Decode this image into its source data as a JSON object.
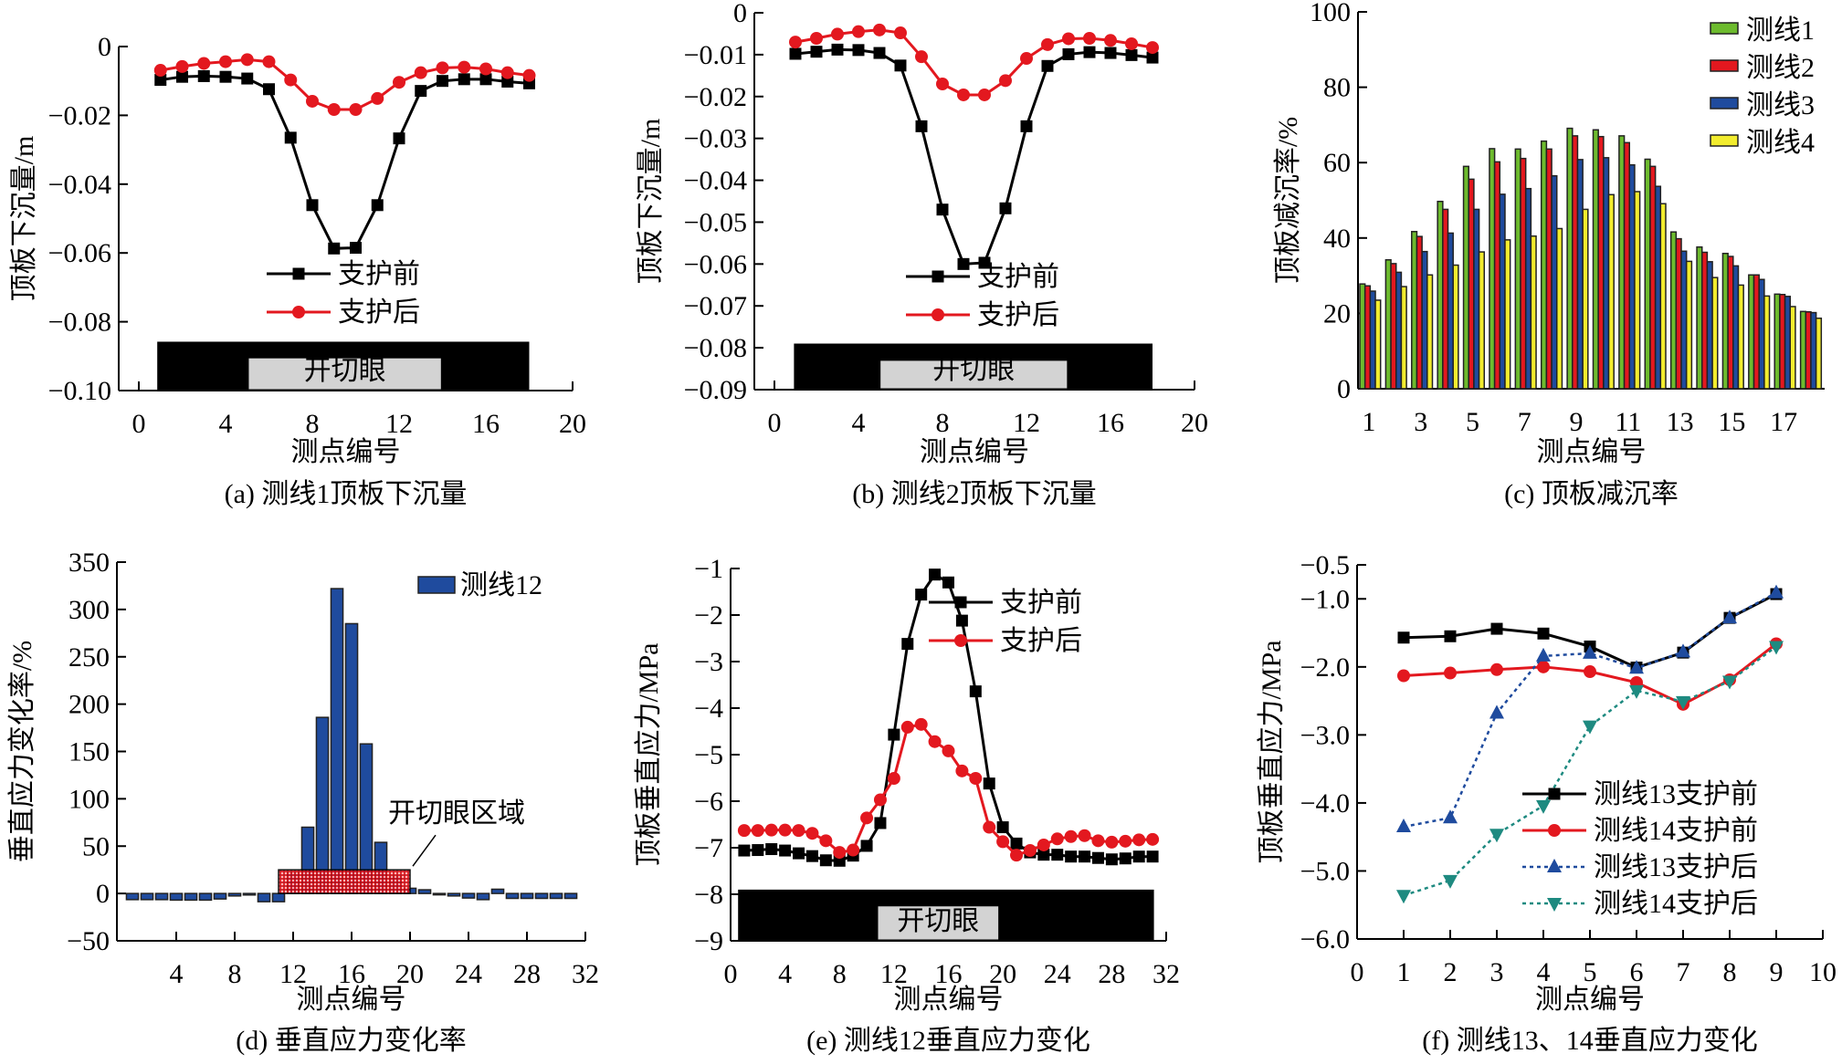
{
  "figure": {
    "panels": [
      "a",
      "b",
      "c",
      "d",
      "e",
      "f"
    ]
  },
  "chart_data": [
    {
      "id": "a",
      "type": "line",
      "caption": "(a)  测线1顶板下沉量",
      "xlabel": "测点编号",
      "ylabel": "顶板下沉量/m",
      "xlim": [
        0,
        20
      ],
      "ylim": [
        -0.1,
        0
      ],
      "xticks": [
        0,
        4,
        8,
        12,
        16,
        20
      ],
      "xtick_labels": [
        "0",
        "4",
        "8",
        "12",
        "16",
        "20"
      ],
      "yticks": [
        0,
        -0.02,
        -0.04,
        -0.06,
        -0.08,
        -0.1
      ],
      "ytick_labels": [
        "0",
        "−0.02",
        "−0.04",
        "−0.06",
        "−0.08",
        "−0.10"
      ],
      "grid": false,
      "legend_position": "center-right",
      "x": [
        1,
        2,
        3,
        4,
        5,
        6,
        7,
        8,
        9,
        10,
        11,
        12,
        13,
        14,
        15,
        16,
        17,
        18
      ],
      "series": [
        {
          "name": "支护前",
          "color": "#000000",
          "marker": "square",
          "dashed": false,
          "values": [
            -0.0097,
            -0.0088,
            -0.0086,
            -0.0088,
            -0.0093,
            -0.0124,
            -0.0265,
            -0.0461,
            -0.0587,
            -0.0585,
            -0.0461,
            -0.0267,
            -0.0129,
            -0.01,
            -0.0095,
            -0.0095,
            -0.0102,
            -0.0107
          ]
        },
        {
          "name": "支护后",
          "color": "#e3181f",
          "marker": "circle",
          "dashed": false,
          "values": [
            -0.0069,
            -0.0058,
            -0.0049,
            -0.0044,
            -0.0038,
            -0.0044,
            -0.0097,
            -0.0159,
            -0.0183,
            -0.0183,
            -0.0151,
            -0.0104,
            -0.0076,
            -0.0062,
            -0.006,
            -0.0065,
            -0.0076,
            -0.0084
          ]
        }
      ],
      "annotation_box": {
        "label": "开切眼",
        "outer_x": [
          0.85,
          18.0
        ],
        "outer_top": -0.0858,
        "inner_x": [
          5.05,
          13.95
        ],
        "inner_top": -0.0905
      }
    },
    {
      "id": "b",
      "type": "line",
      "caption": "(b)  测线2顶板下沉量",
      "xlabel": "测点编号",
      "ylabel": "顶板下沉量/m",
      "xlim": [
        0,
        20
      ],
      "ylim": [
        -0.09,
        0
      ],
      "xticks": [
        0,
        4,
        8,
        12,
        16,
        20
      ],
      "xtick_labels": [
        "0",
        "4",
        "8",
        "12",
        "16",
        "20"
      ],
      "yticks": [
        0,
        -0.01,
        -0.02,
        -0.03,
        -0.04,
        -0.05,
        -0.06,
        -0.07,
        -0.08,
        -0.09
      ],
      "ytick_labels": [
        "0",
        "−0.01",
        "−0.02",
        "−0.03",
        "−0.04",
        "−0.05",
        "−0.06",
        "−0.07",
        "−0.08",
        "−0.09"
      ],
      "grid": false,
      "legend_position": "center-right",
      "x": [
        1,
        2,
        3,
        4,
        5,
        6,
        7,
        8,
        9,
        10,
        11,
        12,
        13,
        14,
        15,
        16,
        17,
        18
      ],
      "series": [
        {
          "name": "支护前",
          "color": "#000000",
          "marker": "square",
          "dashed": false,
          "values": [
            -0.0098,
            -0.0093,
            -0.0088,
            -0.0089,
            -0.0096,
            -0.0126,
            -0.0271,
            -0.047,
            -0.06,
            -0.0597,
            -0.0467,
            -0.0271,
            -0.0127,
            -0.0099,
            -0.0094,
            -0.0096,
            -0.0101,
            -0.0107
          ]
        },
        {
          "name": "支护后",
          "color": "#e3181f",
          "marker": "circle",
          "dashed": false,
          "values": [
            -0.007,
            -0.0061,
            -0.0051,
            -0.0045,
            -0.0041,
            -0.0048,
            -0.0105,
            -0.017,
            -0.0196,
            -0.0196,
            -0.0162,
            -0.0109,
            -0.0076,
            -0.0062,
            -0.0061,
            -0.0066,
            -0.0074,
            -0.0083
          ]
        }
      ],
      "annotation_box": {
        "label": "开切眼",
        "outer_x": [
          0.93,
          18.0
        ],
        "outer_top": -0.079,
        "inner_x": [
          5.03,
          13.95
        ],
        "inner_top": -0.083
      }
    },
    {
      "id": "c",
      "type": "bar",
      "caption": "(c)  顶板减沉率",
      "xlabel": "测点编号",
      "ylabel": "顶板减沉率/%",
      "ylim": [
        0,
        100
      ],
      "yticks": [
        0,
        20,
        40,
        60,
        80,
        100
      ],
      "ytick_labels": [
        "0",
        "20",
        "40",
        "60",
        "80",
        "100"
      ],
      "categories": [
        "1",
        "2",
        "3",
        "4",
        "5",
        "6",
        "7",
        "8",
        "9",
        "10",
        "11",
        "12",
        "13",
        "14",
        "15",
        "16",
        "17",
        "18"
      ],
      "xtick_labels_shown": [
        "1",
        "3",
        "5",
        "7",
        "9",
        "11",
        "13",
        "15",
        "17"
      ],
      "grid": false,
      "legend_position": "top-right",
      "series": [
        {
          "name": "测线1",
          "color": "#6dbb2e",
          "values": [
            27.8,
            34.2,
            41.7,
            49.7,
            59.0,
            63.7,
            63.6,
            65.7,
            69.1,
            68.7,
            67.1,
            60.9,
            41.6,
            37.6,
            35.9,
            30.2,
            25.1,
            20.5
          ]
        },
        {
          "name": "测线2",
          "color": "#e3181f",
          "values": [
            27.3,
            33.2,
            40.4,
            47.6,
            55.6,
            60.2,
            61.1,
            63.6,
            67.1,
            66.9,
            65.3,
            59.0,
            39.8,
            36.2,
            35.1,
            30.2,
            25.0,
            20.4
          ]
        },
        {
          "name": "测线3",
          "color": "#1f4b9e",
          "values": [
            25.9,
            30.9,
            36.4,
            41.3,
            47.6,
            51.6,
            53.1,
            56.5,
            60.8,
            61.3,
            59.4,
            53.7,
            36.5,
            33.7,
            32.6,
            29.0,
            24.5,
            20.2
          ]
        },
        {
          "name": "测线4",
          "color": "#f2ec2e",
          "values": [
            23.5,
            27.1,
            30.2,
            32.8,
            36.3,
            39.5,
            40.5,
            42.5,
            47.6,
            51.5,
            52.3,
            49.1,
            33.8,
            29.5,
            27.5,
            24.6,
            21.8,
            18.7
          ]
        }
      ]
    },
    {
      "id": "d",
      "type": "bar",
      "caption": "(d)  垂直应力变化率",
      "xlabel": "测点编号",
      "ylabel": "垂直应力变化率/%",
      "xlim": [
        0,
        32
      ],
      "ylim": [
        -50,
        350
      ],
      "xticks": [
        4,
        8,
        12,
        16,
        20,
        24,
        28,
        32
      ],
      "xtick_labels": [
        "4",
        "8",
        "12",
        "16",
        "20",
        "24",
        "28",
        "32"
      ],
      "yticks": [
        -50,
        0,
        50,
        100,
        150,
        200,
        250,
        300,
        350
      ],
      "ytick_labels": [
        "−50",
        "0",
        "50",
        "100",
        "150",
        "200",
        "250",
        "300",
        "350"
      ],
      "grid": false,
      "legend_position": "top-right",
      "x": [
        1,
        2,
        3,
        4,
        5,
        6,
        7,
        8,
        9,
        10,
        11,
        12,
        13,
        14,
        15,
        16,
        17,
        18,
        19,
        20,
        21,
        22,
        23,
        24,
        25,
        26,
        27,
        28,
        29,
        30,
        31
      ],
      "series": [
        {
          "name": "测线12",
          "color": "#1f4b9e",
          "values": [
            -6.5,
            -6.5,
            -6.5,
            -7.0,
            -7.0,
            -7.0,
            -5.8,
            -2.6,
            -1.6,
            -8.7,
            -8.7,
            22,
            70,
            186,
            322,
            285,
            158,
            54,
            18,
            5.5,
            3.9,
            -0.5,
            -2.6,
            -4.8,
            -6.5,
            4.5,
            -5.2,
            -5.2,
            -5.2,
            -5.2,
            -5.2
          ]
        }
      ],
      "region": {
        "label": "开切眼区域",
        "x": [
          11,
          20
        ],
        "top": 25,
        "color": "#e3181f"
      }
    },
    {
      "id": "e",
      "type": "line",
      "caption": "(e)  测线12垂直应力变化",
      "xlabel": "测点编号",
      "ylabel": "顶板垂直应力/MPa",
      "xlim": [
        0,
        32
      ],
      "ylim": [
        -9,
        -1
      ],
      "xticks": [
        0,
        4,
        8,
        12,
        16,
        20,
        24,
        28,
        32
      ],
      "xtick_labels": [
        "0",
        "4",
        "8",
        "12",
        "16",
        "20",
        "24",
        "28",
        "32"
      ],
      "yticks": [
        -1,
        -2,
        -3,
        -4,
        -5,
        -6,
        -7,
        -8,
        -9
      ],
      "ytick_labels": [
        "−1",
        "−2",
        "−3",
        "−4",
        "−5",
        "−6",
        "−7",
        "−8",
        "−9"
      ],
      "grid": false,
      "legend_position": "top-right",
      "x": [
        1,
        2,
        3,
        4,
        5,
        6,
        7,
        8,
        9,
        10,
        11,
        12,
        13,
        14,
        15,
        16,
        17,
        18,
        19,
        20,
        21,
        22,
        23,
        24,
        25,
        26,
        27,
        28,
        29,
        30,
        31
      ],
      "series": [
        {
          "name": "支护前",
          "color": "#000000",
          "marker": "square",
          "dashed": false,
          "values": [
            -7.06,
            -7.05,
            -7.03,
            -7.06,
            -7.12,
            -7.18,
            -7.27,
            -7.28,
            -7.17,
            -6.96,
            -6.47,
            -4.57,
            -2.62,
            -1.56,
            -1.13,
            -1.3,
            -2.12,
            -3.64,
            -5.62,
            -6.56,
            -6.91,
            -7.1,
            -7.15,
            -7.15,
            -7.19,
            -7.19,
            -7.22,
            -7.25,
            -7.23,
            -7.19,
            -7.19
          ]
        },
        {
          "name": "支护后",
          "color": "#e3181f",
          "marker": "circle",
          "dashed": false,
          "values": [
            -6.63,
            -6.63,
            -6.62,
            -6.62,
            -6.63,
            -6.69,
            -6.85,
            -7.1,
            -7.05,
            -6.36,
            -5.97,
            -5.51,
            -4.41,
            -4.35,
            -4.72,
            -4.92,
            -5.35,
            -5.51,
            -6.56,
            -6.87,
            -7.16,
            -7.06,
            -6.94,
            -6.81,
            -6.76,
            -6.74,
            -6.85,
            -6.88,
            -6.86,
            -6.83,
            -6.82
          ]
        }
      ],
      "annotation_box": {
        "label": "开切眼",
        "outer_x": [
          0.55,
          31.1
        ],
        "outer_top": -7.9,
        "inner_x": [
          10.8,
          19.7
        ],
        "inner_top": -8.25
      }
    },
    {
      "id": "f",
      "type": "line",
      "caption": "(f)  测线13、14垂直应力变化",
      "xlabel": "测点编号",
      "ylabel": "顶板垂直应力/MPa",
      "xlim": [
        0,
        10
      ],
      "ylim": [
        -6.0,
        -0.5
      ],
      "xticks": [
        0,
        1,
        2,
        3,
        4,
        5,
        6,
        7,
        8,
        9,
        10
      ],
      "xtick_labels": [
        "0",
        "1",
        "2",
        "3",
        "4",
        "5",
        "6",
        "7",
        "8",
        "9",
        "10"
      ],
      "yticks": [
        -0.5,
        -1.0,
        -2.0,
        -3.0,
        -4.0,
        -5.0,
        -6.0
      ],
      "ytick_labels": [
        "−0.5",
        "−1.0",
        "−2.0",
        "−3.0",
        "−4.0",
        "−5.0",
        "−6.0"
      ],
      "grid": false,
      "legend_position": "bottom-right",
      "x": [
        1,
        2,
        3,
        4,
        5,
        6,
        7,
        8,
        9
      ],
      "series": [
        {
          "name": "测线13支护前",
          "color": "#000000",
          "marker": "square",
          "dashed": false,
          "values": [
            -1.57,
            -1.55,
            -1.44,
            -1.51,
            -1.7,
            -2.01,
            -1.79,
            -1.28,
            -0.93
          ]
        },
        {
          "name": "测线14支护前",
          "color": "#e3181f",
          "marker": "circle",
          "dashed": false,
          "values": [
            -2.13,
            -2.09,
            -2.04,
            -2.0,
            -2.07,
            -2.23,
            -2.55,
            -2.19,
            -1.66
          ]
        },
        {
          "name": "测线13支护后",
          "color": "#1f4b9e",
          "marker": "triangle-up",
          "dashed": true,
          "values": [
            -4.35,
            -4.22,
            -2.68,
            -1.84,
            -1.8,
            -2.02,
            -1.78,
            -1.28,
            -0.91
          ]
        },
        {
          "name": "测线14支护后",
          "color": "#1e8a80",
          "marker": "triangle-down",
          "dashed": true,
          "values": [
            -5.36,
            -5.14,
            -4.46,
            -4.04,
            -2.87,
            -2.35,
            -2.51,
            -2.21,
            -1.7
          ]
        }
      ]
    }
  ]
}
